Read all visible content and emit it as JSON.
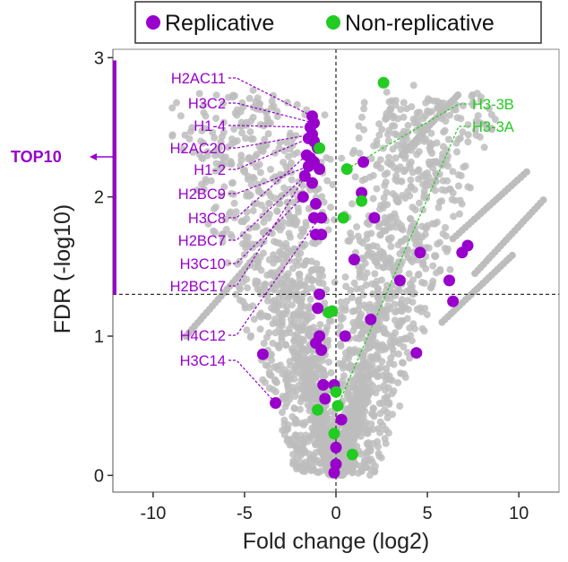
{
  "chart_data": {
    "type": "scatter",
    "title": "",
    "xlabel": "Fold change (log2)",
    "ylabel": "FDR (-log10)",
    "xlim": [
      -12.2,
      12.2
    ],
    "ylim": [
      -0.12,
      3.06
    ],
    "xticks": [
      -10,
      -5,
      0,
      5,
      10
    ],
    "yticks": [
      0,
      1,
      2,
      3
    ],
    "grid": false,
    "threshold_lines": {
      "x": 0,
      "y": 1.3
    },
    "legend": {
      "position": "top",
      "entries": [
        {
          "label": "Replicative",
          "color": "#9900cc"
        },
        {
          "label": "Non-replicative",
          "color": "#22cc22"
        }
      ]
    },
    "colors": {
      "background_points": "#bdbdbd",
      "replicative": "#9900cc",
      "non_replicative": "#22cc22",
      "threshold_line": "#333333"
    },
    "top_annotation": {
      "label": "TOP10",
      "color": "#9900cc",
      "y_range": [
        1.3,
        2.98
      ]
    },
    "background_note": "thousands of grey points forming a V-shaped volcano, all other proteins",
    "series": [
      {
        "name": "Replicative",
        "points": [
          {
            "x": -1.3,
            "y": 2.58
          },
          {
            "x": -1.2,
            "y": 2.53
          },
          {
            "x": -1.4,
            "y": 2.5
          },
          {
            "x": -1.3,
            "y": 2.45
          },
          {
            "x": -1.5,
            "y": 2.42
          },
          {
            "x": -1.2,
            "y": 2.4
          },
          {
            "x": -1.0,
            "y": 2.35
          },
          {
            "x": -1.6,
            "y": 2.3
          },
          {
            "x": -1.4,
            "y": 2.28
          },
          {
            "x": -1.2,
            "y": 2.25
          },
          {
            "x": -1.5,
            "y": 2.22
          },
          {
            "x": -0.9,
            "y": 2.2
          },
          {
            "x": -1.7,
            "y": 2.15
          },
          {
            "x": -1.3,
            "y": 2.1
          },
          {
            "x": -1.8,
            "y": 2.0
          },
          {
            "x": -1.1,
            "y": 1.95
          },
          {
            "x": -1.2,
            "y": 1.85
          },
          {
            "x": -0.8,
            "y": 1.85
          },
          {
            "x": -1.1,
            "y": 1.73
          },
          {
            "x": -0.8,
            "y": 1.73
          },
          {
            "x": -0.9,
            "y": 1.3
          },
          {
            "x": -1.0,
            "y": 1.2
          },
          {
            "x": -0.9,
            "y": 1.0
          },
          {
            "x": -1.1,
            "y": 0.95
          },
          {
            "x": -0.8,
            "y": 0.9
          },
          {
            "x": -0.7,
            "y": 0.65
          },
          {
            "x": -0.6,
            "y": 0.55
          },
          {
            "x": -4.0,
            "y": 0.87
          },
          {
            "x": -3.3,
            "y": 0.52
          },
          {
            "x": 1.5,
            "y": 2.25
          },
          {
            "x": 1.4,
            "y": 2.03
          },
          {
            "x": 2.1,
            "y": 1.85
          },
          {
            "x": 1.0,
            "y": 1.55
          },
          {
            "x": 0.5,
            "y": 1.0
          },
          {
            "x": 0.3,
            "y": 0.4
          },
          {
            "x": -0.1,
            "y": 0.65
          },
          {
            "x": 0.0,
            "y": 0.2
          },
          {
            "x": 0.0,
            "y": 0.08
          },
          {
            "x": -0.1,
            "y": 0.02
          },
          {
            "x": 1.9,
            "y": 1.12
          },
          {
            "x": 4.4,
            "y": 0.88
          },
          {
            "x": 3.5,
            "y": 1.4
          },
          {
            "x": 4.6,
            "y": 1.6
          },
          {
            "x": 6.2,
            "y": 1.4
          },
          {
            "x": 6.4,
            "y": 1.25
          },
          {
            "x": 6.9,
            "y": 1.6
          },
          {
            "x": 7.2,
            "y": 1.65
          }
        ]
      },
      {
        "name": "Non-replicative",
        "points": [
          {
            "x": 2.6,
            "y": 2.82
          },
          {
            "x": -0.9,
            "y": 2.35
          },
          {
            "x": 0.6,
            "y": 2.2
          },
          {
            "x": 1.4,
            "y": 1.97
          },
          {
            "x": 0.4,
            "y": 1.85
          },
          {
            "x": -0.4,
            "y": 1.17
          },
          {
            "x": -0.2,
            "y": 1.18
          },
          {
            "x": 0.0,
            "y": 0.6
          },
          {
            "x": 0.1,
            "y": 0.5
          },
          {
            "x": -1.0,
            "y": 0.47
          },
          {
            "x": -0.1,
            "y": 0.3
          },
          {
            "x": 0.9,
            "y": 0.15
          }
        ]
      }
    ],
    "annotations": {
      "left": [
        "H2AC11",
        "H3C2",
        "H1-4",
        "H2AC20",
        "H1-2",
        "H2BC9",
        "H3C8",
        "H2BC7",
        "H3C10",
        "H2BC17",
        "H4C12",
        "H3C14"
      ],
      "right": [
        "H3-3B",
        "H3-3A"
      ]
    }
  }
}
